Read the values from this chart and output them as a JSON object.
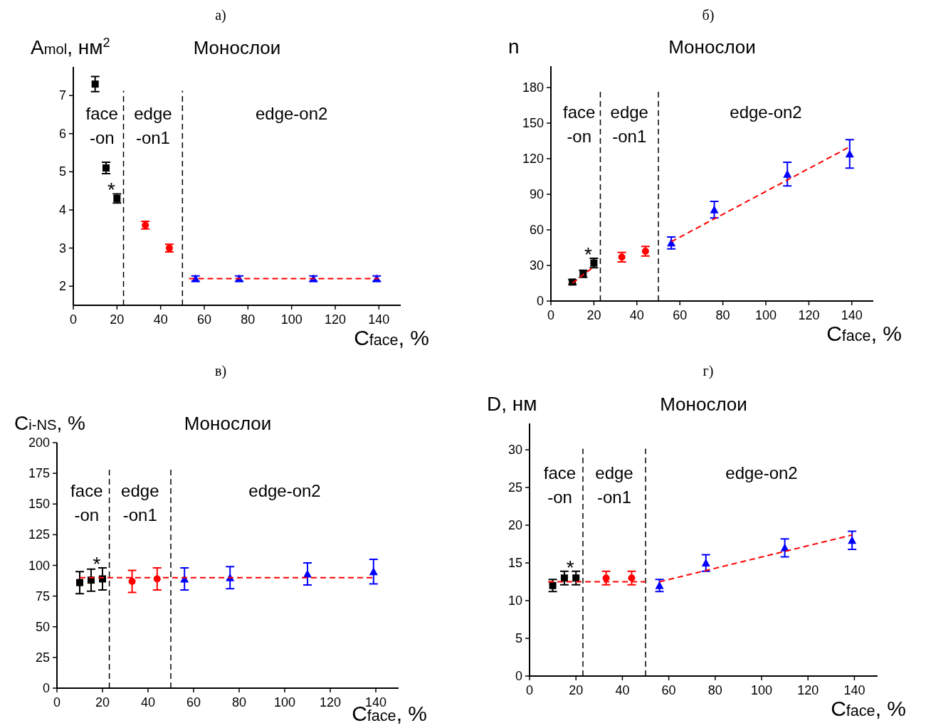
{
  "chart_data": [
    {
      "type": "scatter",
      "title": "а)",
      "xlabel": "C$_{face}$, %",
      "ylabel": "A$_{mol}$, нм$^{2}$",
      "xlim": [
        0,
        150
      ],
      "xticks": [
        0,
        20,
        40,
        60,
        80,
        100,
        120,
        140
      ],
      "ylim": [
        1.5,
        7.75
      ],
      "yticks": [
        2,
        3,
        4,
        5,
        6,
        7
      ],
      "ref_lines": [
        {
          "axis": "x",
          "value": 23,
          "color": "#000000",
          "line_style": "dashed"
        },
        {
          "axis": "x",
          "value": 50,
          "color": "#000000",
          "line_style": "dashed"
        }
      ],
      "annotations": [
        "Монослои",
        "face\n-on",
        "edge\n-on1",
        "edge-on2",
        "*"
      ],
      "series": [
        {
          "color": "#000000",
          "x": [
            10,
            15,
            20
          ],
          "values": [
            7.3,
            5.1,
            4.3
          ],
          "errors": [
            0.2,
            0.15,
            0.12
          ]
        },
        {
          "color": "#ff0000",
          "x": [
            33,
            44
          ],
          "values": [
            3.6,
            3.0
          ],
          "errors": [
            0.1,
            0.1
          ]
        },
        {
          "color": "#0000ff",
          "x": [
            56,
            76,
            110,
            139
          ],
          "values": [
            2.2,
            2.2,
            2.2,
            2.2
          ],
          "errors": [
            0.07,
            0.07,
            0.07,
            0.07
          ]
        },
        {
          "type": "line",
          "color": "#ff0000",
          "line_style": "dashed",
          "x": [
            53,
            140
          ],
          "values": [
            2.2,
            2.2
          ]
        }
      ]
    },
    {
      "type": "scatter",
      "title": "б)",
      "xlabel": "C$_{face}$, %",
      "ylabel": "n",
      "xlim": [
        0,
        150
      ],
      "xticks": [
        0,
        20,
        40,
        60,
        80,
        100,
        120,
        140
      ],
      "ylim": [
        0,
        198
      ],
      "yticks": [
        0,
        30,
        60,
        90,
        120,
        150,
        180
      ],
      "ref_lines": [
        {
          "axis": "x",
          "value": 23,
          "color": "#000000",
          "line_style": "dashed"
        },
        {
          "axis": "x",
          "value": 50,
          "color": "#000000",
          "line_style": "dashed"
        }
      ],
      "annotations": [
        "Монослои",
        "face\n-on",
        "edge\n-on1",
        "edge-on2",
        "*"
      ],
      "series": [
        {
          "color": "#000000",
          "x": [
            10,
            15,
            20
          ],
          "values": [
            16,
            23,
            32
          ],
          "errors": [
            2,
            3,
            4
          ]
        },
        {
          "color": "#ff0000",
          "x": [
            33,
            44
          ],
          "values": [
            37,
            42
          ],
          "errors": [
            4,
            4
          ]
        },
        {
          "color": "#0000ff",
          "x": [
            56,
            76,
            110,
            139
          ],
          "values": [
            49,
            77,
            107,
            124
          ],
          "errors": [
            5,
            7,
            10,
            12
          ]
        },
        {
          "type": "line",
          "color": "#ff0000",
          "line_style": "dashed",
          "x": [
            10,
            20
          ],
          "values": [
            15,
            29
          ]
        },
        {
          "type": "line",
          "color": "#ff0000",
          "line_style": "dashed",
          "x": [
            56,
            139
          ],
          "values": [
            50,
            130
          ]
        }
      ]
    },
    {
      "type": "scatter",
      "title": "в)",
      "xlabel": "C$_{face}$, %",
      "ylabel": "C$_{i-NS}$, %",
      "xlim": [
        0,
        150
      ],
      "xticks": [
        0,
        20,
        40,
        60,
        80,
        100,
        120,
        140
      ],
      "ylim": [
        0,
        200
      ],
      "yticks": [
        0,
        25,
        50,
        75,
        100,
        125,
        150,
        175,
        200
      ],
      "ref_lines": [
        {
          "axis": "x",
          "value": 23,
          "color": "#000000",
          "line_style": "dashed"
        },
        {
          "axis": "x",
          "value": 50,
          "color": "#000000",
          "line_style": "dashed"
        }
      ],
      "annotations": [
        "Монослои",
        "face\n-on",
        "edge\n-on1",
        "edge-on2",
        "*"
      ],
      "series": [
        {
          "color": "#000000",
          "x": [
            10,
            15,
            20
          ],
          "values": [
            86,
            88,
            89
          ],
          "errors": [
            9,
            9,
            9
          ]
        },
        {
          "color": "#ff0000",
          "x": [
            33,
            44
          ],
          "values": [
            87,
            89
          ],
          "errors": [
            9,
            9
          ]
        },
        {
          "color": "#0000ff",
          "x": [
            56,
            76,
            110,
            139
          ],
          "values": [
            89,
            90,
            93,
            95
          ],
          "errors": [
            9,
            9,
            9,
            10
          ]
        },
        {
          "type": "line",
          "color": "#ff0000",
          "line_style": "dashed",
          "x": [
            10,
            139
          ],
          "values": [
            90,
            90
          ]
        }
      ]
    },
    {
      "type": "scatter",
      "title": "г)",
      "xlabel": "C$_{face}$, %",
      "ylabel": "D, нм",
      "xlim": [
        0,
        150
      ],
      "xticks": [
        0,
        20,
        40,
        60,
        80,
        100,
        120,
        140
      ],
      "ylim": [
        0,
        33.5
      ],
      "yticks": [
        0,
        5,
        10,
        15,
        20,
        25,
        30
      ],
      "ref_lines": [
        {
          "axis": "x",
          "value": 23,
          "color": "#000000",
          "line_style": "dashed"
        },
        {
          "axis": "x",
          "value": 50,
          "color": "#000000",
          "line_style": "dashed"
        }
      ],
      "annotations": [
        "Монослои",
        "face\n-on",
        "edge\n-on1",
        "edge-on2",
        "*"
      ],
      "series": [
        {
          "color": "#000000",
          "x": [
            10,
            15,
            20
          ],
          "values": [
            12,
            13,
            13
          ],
          "errors": [
            0.8,
            0.9,
            0.9
          ]
        },
        {
          "color": "#ff0000",
          "x": [
            33,
            44
          ],
          "values": [
            13,
            13
          ],
          "errors": [
            0.9,
            0.9
          ]
        },
        {
          "color": "#0000ff",
          "x": [
            56,
            76,
            110,
            139
          ],
          "values": [
            12,
            15,
            17,
            18
          ],
          "errors": [
            0.8,
            1.1,
            1.2,
            1.2
          ]
        },
        {
          "type": "line",
          "color": "#ff0000",
          "line_style": "dashed",
          "x": [
            8,
            50
          ],
          "values": [
            12.5,
            12.5
          ]
        },
        {
          "type": "line",
          "color": "#ff0000",
          "line_style": "dashed",
          "x": [
            56,
            139
          ],
          "values": [
            12.5,
            18.7
          ]
        }
      ]
    }
  ]
}
